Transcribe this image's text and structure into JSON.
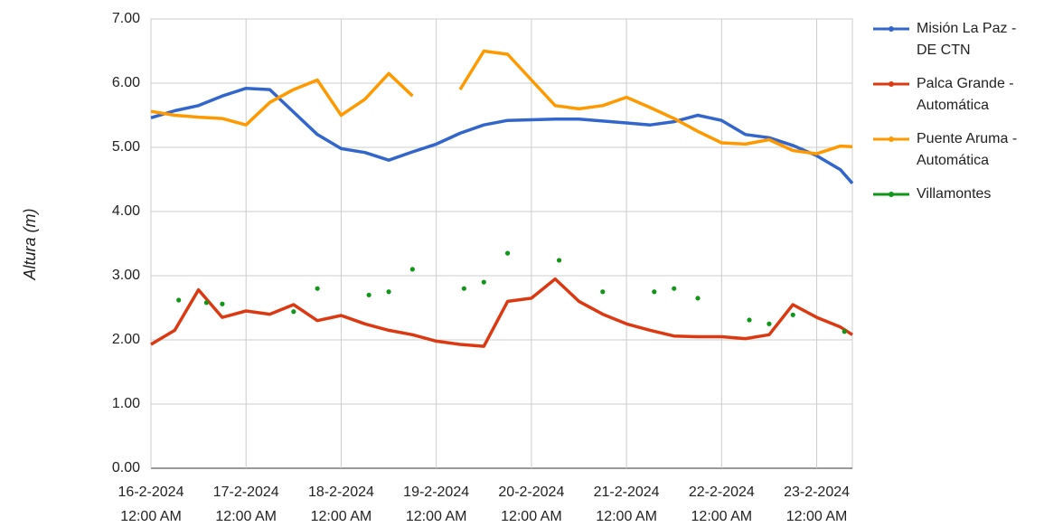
{
  "chart_data": {
    "type": "line",
    "y_label": "Altura (m)",
    "x": [
      "2024-02-16T00:00",
      "2024-02-16T06:00",
      "2024-02-16T12:00",
      "2024-02-16T18:00",
      "2024-02-17T00:00",
      "2024-02-17T06:00",
      "2024-02-17T12:00",
      "2024-02-17T18:00",
      "2024-02-18T00:00",
      "2024-02-18T06:00",
      "2024-02-18T12:00",
      "2024-02-18T18:00",
      "2024-02-19T00:00",
      "2024-02-19T06:00",
      "2024-02-19T12:00",
      "2024-02-19T18:00",
      "2024-02-20T00:00",
      "2024-02-20T06:00",
      "2024-02-20T12:00",
      "2024-02-20T18:00",
      "2024-02-21T00:00",
      "2024-02-21T06:00",
      "2024-02-21T12:00",
      "2024-02-21T18:00",
      "2024-02-22T00:00",
      "2024-02-22T06:00",
      "2024-02-22T12:00",
      "2024-02-22T18:00",
      "2024-02-23T00:00",
      "2024-02-23T06:00",
      "2024-02-23T09:00"
    ],
    "series": [
      {
        "name": "Misión La Paz - DE CTN",
        "color": "#3366cc",
        "values": [
          5.46,
          5.57,
          5.65,
          5.8,
          5.92,
          5.9,
          5.55,
          5.2,
          4.98,
          4.92,
          4.8,
          4.93,
          5.05,
          5.22,
          5.35,
          5.42,
          5.43,
          5.44,
          5.44,
          5.41,
          5.38,
          5.35,
          5.4,
          5.5,
          5.42,
          5.2,
          5.15,
          5.03,
          4.87,
          4.65,
          4.44
        ]
      },
      {
        "name": "Palca Grande - Automática",
        "color": "#dc3912",
        "values": [
          1.93,
          2.15,
          2.78,
          2.35,
          2.45,
          2.4,
          2.55,
          2.3,
          2.38,
          2.25,
          2.15,
          2.08,
          1.98,
          1.93,
          1.9,
          2.6,
          2.65,
          2.95,
          2.6,
          2.4,
          2.25,
          2.15,
          2.06,
          2.05,
          2.05,
          2.02,
          2.08,
          2.55,
          2.35,
          2.2,
          2.08
        ]
      },
      {
        "name": "Puente Aruma - Automática",
        "color": "#ff9900",
        "values": [
          5.56,
          5.5,
          5.47,
          5.45,
          5.35,
          5.7,
          5.9,
          6.05,
          5.5,
          5.75,
          6.15,
          5.8,
          null,
          5.9,
          6.5,
          6.45,
          6.05,
          5.65,
          5.6,
          5.65,
          5.78,
          5.62,
          5.45,
          5.25,
          5.07,
          5.05,
          5.12,
          4.95,
          4.9,
          5.02,
          5.01
        ]
      },
      {
        "name": "Villamontes",
        "color": "#109618",
        "style": "markers",
        "x": [
          "2024-02-16T07:00",
          "2024-02-16T14:00",
          "2024-02-16T18:00",
          "2024-02-17T12:00",
          "2024-02-17T18:00",
          "2024-02-18T07:00",
          "2024-02-18T12:00",
          "2024-02-18T18:00",
          "2024-02-19T07:00",
          "2024-02-19T12:00",
          "2024-02-19T18:00",
          "2024-02-20T07:00",
          "2024-02-20T18:00",
          "2024-02-21T07:00",
          "2024-02-21T12:00",
          "2024-02-21T18:00",
          "2024-02-22T07:00",
          "2024-02-22T12:00",
          "2024-02-22T18:00",
          "2024-02-23T07:00"
        ],
        "values": [
          2.62,
          2.58,
          2.56,
          2.44,
          2.8,
          2.7,
          2.75,
          3.1,
          2.8,
          2.9,
          3.35,
          3.24,
          2.75,
          2.75,
          2.8,
          2.65,
          2.31,
          2.25,
          2.39,
          2.13
        ]
      }
    ],
    "xlim": [
      "2024-02-16T00:00",
      "2024-02-23T09:00"
    ],
    "xticks": [
      {
        "value": "2024-02-16T00:00",
        "label": "16-2-2024 12:00 AM"
      },
      {
        "value": "2024-02-17T00:00",
        "label": "17-2-2024 12:00 AM"
      },
      {
        "value": "2024-02-18T00:00",
        "label": "18-2-2024 12:00 AM"
      },
      {
        "value": "2024-02-19T00:00",
        "label": "19-2-2024 12:00 AM"
      },
      {
        "value": "2024-02-20T00:00",
        "label": "20-2-2024 12:00 AM"
      },
      {
        "value": "2024-02-21T00:00",
        "label": "21-2-2024 12:00 AM"
      },
      {
        "value": "2024-02-22T00:00",
        "label": "22-2-2024 12:00 AM"
      },
      {
        "value": "2024-02-23T00:00",
        "label": "23-2-2024 12:00 AM"
      }
    ],
    "ylim": [
      0,
      7
    ],
    "yticks": [
      {
        "value": 0,
        "label": "0.00"
      },
      {
        "value": 1,
        "label": "1.00"
      },
      {
        "value": 2,
        "label": "2.00"
      },
      {
        "value": 3,
        "label": "3.00"
      },
      {
        "value": 4,
        "label": "4.00"
      },
      {
        "value": 5,
        "label": "5.00"
      },
      {
        "value": 6,
        "label": "6.00"
      },
      {
        "value": 7,
        "label": "7.00"
      }
    ],
    "grid": true,
    "legend": "right"
  }
}
